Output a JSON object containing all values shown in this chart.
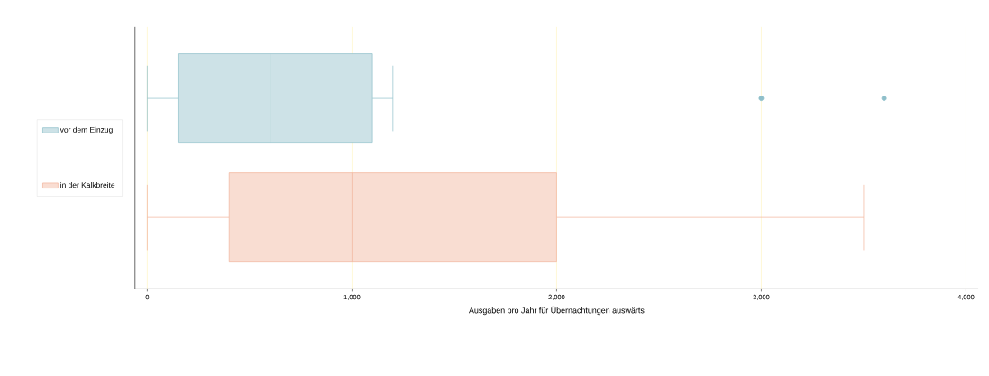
{
  "chart_data": {
    "type": "box",
    "orientation": "horizontal",
    "xlabel": "Ausgaben pro Jahr für Übernachtungen auswärts",
    "categories": [
      null
    ],
    "series": [
      {
        "name": "vor dem Einzug",
        "color": "#8fbfca",
        "boxes": [
          {
            "low": 0,
            "q1": 150,
            "median": 600,
            "q3": 1100,
            "high": 1200,
            "outliers": [
              3000,
              3600
            ]
          }
        ]
      },
      {
        "name": "in der Kalkbreite",
        "color": "#f2b49c",
        "boxes": [
          {
            "low": 0,
            "q1": 400,
            "median": 1000,
            "q3": 2000,
            "high": 3500
          }
        ]
      }
    ],
    "xlim": [
      -60,
      4060
    ],
    "xticks": [
      0,
      {
        "value": 1000,
        "label": "1,000"
      },
      {
        "value": 2000,
        "label": "2,000"
      },
      {
        "value": 3000,
        "label": "3,000"
      },
      {
        "value": 4000,
        "label": "4,000"
      }
    ],
    "grid": "x",
    "legend": "left",
    "marker": "circle"
  }
}
